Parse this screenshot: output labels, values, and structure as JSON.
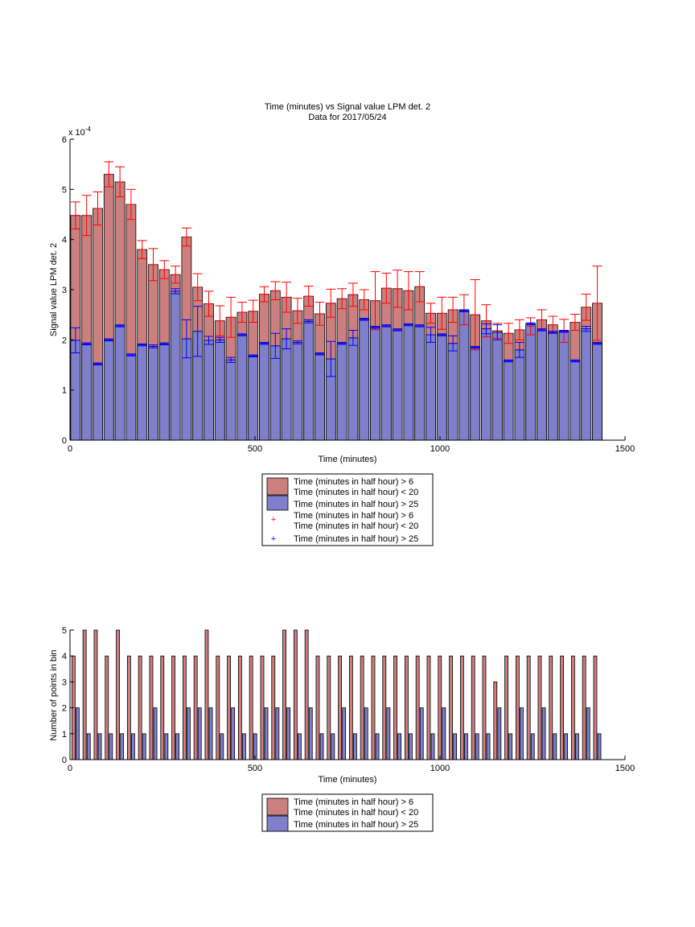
{
  "colors": {
    "red_fill": "#cc7f7f",
    "blue_fill": "#7f7fcc",
    "red_err": "#ff0000",
    "blue_err": "#0000ff",
    "axis": "#000000"
  },
  "chart_data": [
    {
      "type": "bar",
      "title": "Time (minutes) vs Signal value LPM det. 2",
      "subtitle": "Data for 2017/05/24",
      "xlabel": "Time (minutes)",
      "ylabel": "Signal value LPM det. 2",
      "y_exponent": "x 10",
      "y_exponent_power": "-4",
      "xlim": [
        0,
        1500
      ],
      "ylim": [
        0,
        6
      ],
      "xticks": [
        "0",
        "500",
        "1000",
        "1500"
      ],
      "yticks": [
        "0",
        "1",
        "2",
        "3",
        "4",
        "5",
        "6"
      ],
      "x": [
        15,
        45,
        75,
        105,
        135,
        165,
        195,
        225,
        255,
        285,
        315,
        345,
        375,
        405,
        435,
        465,
        495,
        525,
        555,
        585,
        615,
        645,
        675,
        705,
        735,
        765,
        795,
        825,
        855,
        885,
        915,
        945,
        975,
        1005,
        1035,
        1065,
        1095,
        1125,
        1155,
        1185,
        1215,
        1245,
        1275,
        1305,
        1335,
        1365,
        1395,
        1425
      ],
      "series": [
        {
          "name": "Time (minutes in half hour) > 6\nTime (minutes in half hour) < 20",
          "values": [
            4.48,
            4.48,
            4.62,
            5.3,
            5.15,
            4.7,
            3.8,
            3.5,
            3.4,
            3.3,
            4.05,
            3.05,
            2.72,
            2.38,
            2.45,
            2.55,
            2.57,
            2.91,
            2.98,
            2.85,
            2.58,
            2.87,
            2.52,
            2.73,
            2.82,
            2.9,
            2.8,
            2.78,
            3.03,
            3.02,
            2.98,
            3.06,
            2.53,
            2.53,
            2.6,
            2.6,
            2.5,
            2.38,
            2.18,
            2.13,
            2.2,
            2.27,
            2.4,
            2.3,
            2.18,
            2.35,
            2.65,
            2.73
          ],
          "errors": [
            0.27,
            0.4,
            0.33,
            0.25,
            0.3,
            0.3,
            0.18,
            0.32,
            0.18,
            0.17,
            0.18,
            0.27,
            0.25,
            0.3,
            0.4,
            0.2,
            0.22,
            0.15,
            0.18,
            0.3,
            0.25,
            0.2,
            0.23,
            0.28,
            0.2,
            0.23,
            0.2,
            0.58,
            0.3,
            0.37,
            0.38,
            0.3,
            0.2,
            0.32,
            0.25,
            0.3,
            0.7,
            0.32,
            0.15,
            0.2,
            0.2,
            0.17,
            0.2,
            0.17,
            0.23,
            0.16,
            0.26,
            0.74
          ]
        },
        {
          "name": "Time (minutes in half hour) > 25",
          "values": [
            1.99,
            1.92,
            1.52,
            2.0,
            2.28,
            1.7,
            1.9,
            1.87,
            1.92,
            2.97,
            2.02,
            2.17,
            1.99,
            2.0,
            1.6,
            2.1,
            1.68,
            1.93,
            1.88,
            2.02,
            1.95,
            2.37,
            1.72,
            1.62,
            1.93,
            2.04,
            2.41,
            2.25,
            2.28,
            2.2,
            2.3,
            2.28,
            2.1,
            2.1,
            1.93,
            2.58,
            1.85,
            2.22,
            2.15,
            1.58,
            1.8,
            2.32,
            2.2,
            2.15,
            2.17,
            1.58,
            2.22,
            1.93
          ],
          "errors": [
            0.25,
            0.02,
            0.02,
            0.02,
            0.02,
            0.02,
            0.02,
            0.03,
            0.02,
            0.05,
            0.38,
            0.5,
            0.08,
            0.05,
            0.05,
            0.02,
            0.02,
            0.02,
            0.25,
            0.2,
            0.03,
            0.03,
            0.02,
            0.35,
            0.02,
            0.15,
            0.02,
            0.02,
            0.02,
            0.02,
            0.02,
            0.02,
            0.15,
            0.02,
            0.15,
            0.02,
            0.02,
            0.1,
            0.15,
            0.02,
            0.15,
            0.02,
            0.02,
            0.02,
            0.02,
            0.02,
            0.05,
            0.02
          ]
        }
      ],
      "legend": {
        "placement": "below",
        "entries": [
          "Time (minutes in half hour) > 6",
          "Time (minutes in half hour) < 20",
          "Time (minutes in half hour) > 25",
          "Time (minutes in half hour) > 6",
          "Time (minutes in half hour) < 20",
          "Time (minutes in half hour) > 25"
        ]
      }
    },
    {
      "type": "bar",
      "xlabel": "Time (minutes)",
      "ylabel": "Number of points in bin",
      "xlim": [
        0,
        1500
      ],
      "ylim": [
        0,
        5
      ],
      "xticks": [
        "0",
        "500",
        "1000",
        "1500"
      ],
      "yticks": [
        "0",
        "1",
        "2",
        "3",
        "4",
        "5"
      ],
      "x": [
        15,
        45,
        75,
        105,
        135,
        165,
        195,
        225,
        255,
        285,
        315,
        345,
        375,
        405,
        435,
        465,
        495,
        525,
        555,
        585,
        615,
        645,
        675,
        705,
        735,
        765,
        795,
        825,
        855,
        885,
        915,
        945,
        975,
        1005,
        1035,
        1065,
        1095,
        1125,
        1155,
        1185,
        1215,
        1245,
        1275,
        1305,
        1335,
        1365,
        1395,
        1425
      ],
      "series": [
        {
          "name": "Time (minutes in half hour) > 6\nTime (minutes in half hour) < 20",
          "values": [
            4,
            5,
            5,
            4,
            5,
            4,
            4,
            4,
            4,
            4,
            4,
            4,
            5,
            4,
            4,
            4,
            4,
            4,
            4,
            5,
            5,
            5,
            4,
            4,
            4,
            4,
            4,
            4,
            4,
            4,
            4,
            4,
            4,
            4,
            4,
            4,
            4,
            4,
            3,
            4,
            4,
            4,
            4,
            4,
            4,
            4,
            4,
            4
          ]
        },
        {
          "name": "Time (minutes in half hour) > 25",
          "values": [
            2,
            1,
            1,
            1,
            1,
            1,
            1,
            2,
            1,
            1,
            2,
            2,
            2,
            1,
            2,
            1,
            1,
            2,
            2,
            2,
            1,
            2,
            1,
            1,
            2,
            1,
            2,
            1,
            2,
            1,
            1,
            2,
            1,
            2,
            1,
            1,
            1,
            1,
            2,
            1,
            2,
            1,
            2,
            1,
            1,
            1,
            2,
            1
          ]
        }
      ],
      "legend": {
        "placement": "below",
        "entries": [
          "Time (minutes in half hour) > 6",
          "Time (minutes in half hour) < 20",
          "Time (minutes in half hour) > 25"
        ]
      }
    }
  ]
}
